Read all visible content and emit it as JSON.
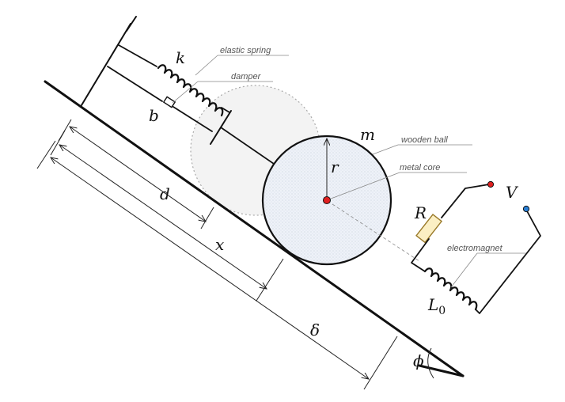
{
  "labels": {
    "k": "k",
    "b": "b",
    "m": "m",
    "r": "r",
    "d": "d",
    "x": "x",
    "delta": "δ",
    "phi": "ϕ",
    "R": "R",
    "V": "V",
    "L": "L",
    "L_sub": "0"
  },
  "annotations": {
    "spring": "elastic spring",
    "damper": "damper",
    "ball": "wooden ball",
    "core": "metal core",
    "magnet": "electromagnet"
  },
  "colors": {
    "ink": "#111111",
    "ball_fill": "#e9eef5",
    "ghost_fill": "#f2f2f2",
    "core": "#e02020",
    "terminal_red": "#e02020",
    "terminal_blue": "#2a7fd4",
    "resistor_fill": "#fbefc4",
    "resistor_stroke": "#9a7a2a"
  }
}
